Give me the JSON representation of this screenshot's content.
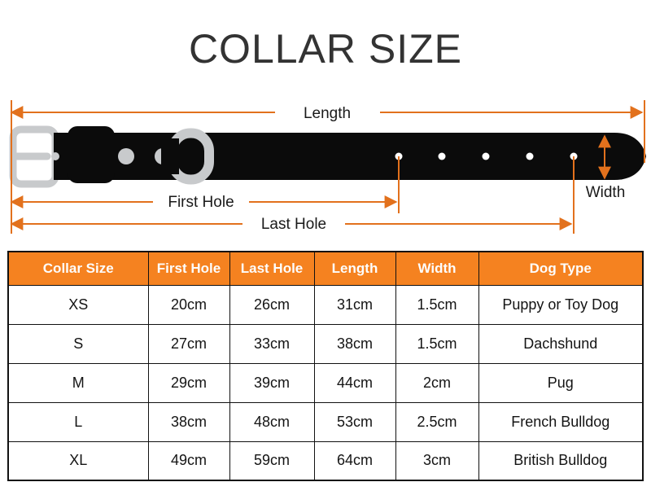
{
  "title": "COLLAR SIZE",
  "diagram": {
    "length_label": "Length",
    "first_hole_label": "First Hole",
    "last_hole_label": "Last Hole",
    "width_label": "Width"
  },
  "table": {
    "headers": [
      "Collar Size",
      "First Hole",
      "Last Hole",
      "Length",
      "Width",
      "Dog Type"
    ],
    "rows": [
      [
        "XS",
        "20cm",
        "26cm",
        "31cm",
        "1.5cm",
        "Puppy or Toy Dog"
      ],
      [
        "S",
        "27cm",
        "33cm",
        "38cm",
        "1.5cm",
        "Dachshund"
      ],
      [
        "M",
        "29cm",
        "39cm",
        "44cm",
        "2cm",
        "Pug"
      ],
      [
        "L",
        "38cm",
        "48cm",
        "53cm",
        "2.5cm",
        "French Bulldog"
      ],
      [
        "XL",
        "49cm",
        "59cm",
        "64cm",
        "3cm",
        "British Bulldog"
      ]
    ]
  },
  "colors": {
    "header_orange": "#F58220",
    "arrow_orange": "#E2711D",
    "belt_black": "#0B0B0B",
    "hardware_gray": "#C8CACC"
  }
}
